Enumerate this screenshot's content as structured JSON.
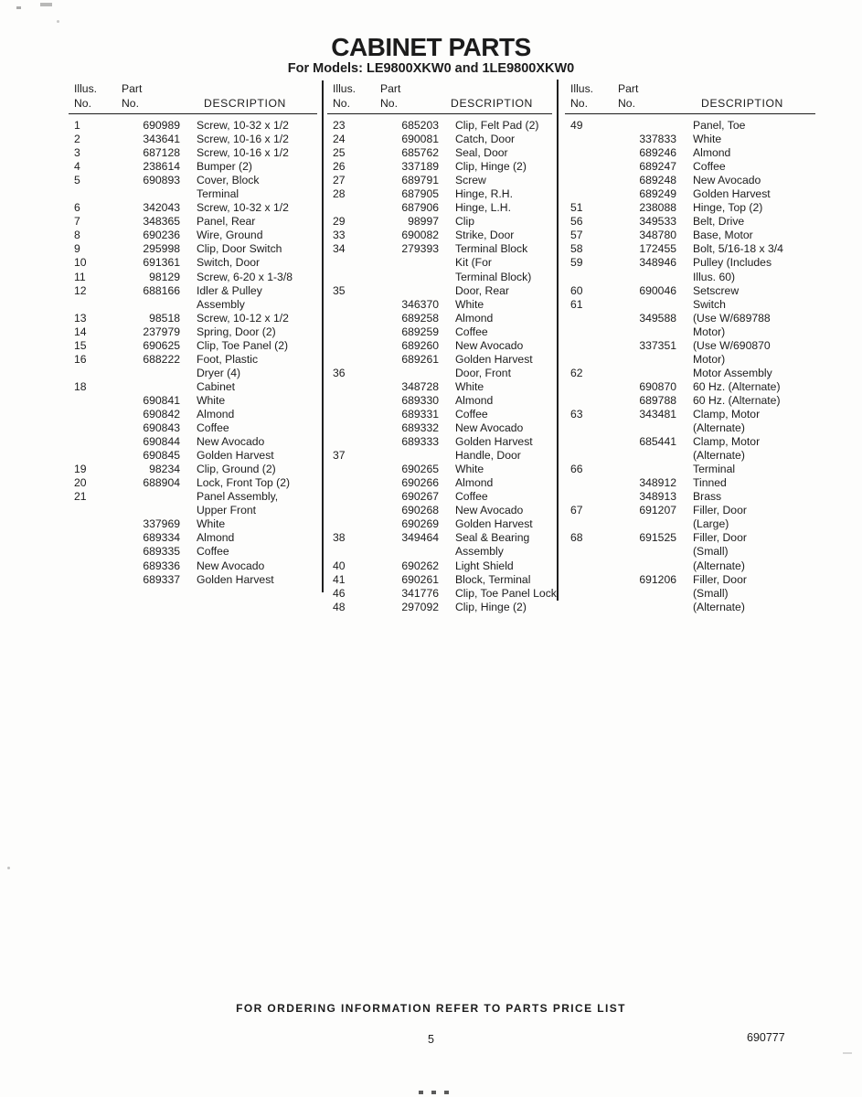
{
  "page": {
    "title": "CABINET PARTS",
    "subtitle": "For Models: LE9800XKW0 and 1LE9800XKW0",
    "footer_note": "FOR ORDERING INFORMATION REFER TO PARTS PRICE LIST",
    "page_number": "5",
    "doc_number": "690777"
  },
  "table": {
    "header": {
      "illus_label": "Illus.",
      "part_label": "Part",
      "no_label": "No.",
      "no2_label": "No.",
      "description_label": "DESCRIPTION"
    },
    "columns": [
      {
        "rows": [
          {
            "illus": "1",
            "part": "690989",
            "desc": "Screw, 10-32 x 1/2"
          },
          {
            "illus": "2",
            "part": "343641",
            "desc": "Screw, 10-16 x 1/2"
          },
          {
            "illus": "3",
            "part": "687128",
            "desc": "Screw, 10-16 x 1/2"
          },
          {
            "illus": "4",
            "part": "238614",
            "desc": "Bumper (2)"
          },
          {
            "illus": "5",
            "part": "690893",
            "desc": "Cover, Block"
          },
          {
            "illus": "",
            "part": "",
            "desc": "Terminal"
          },
          {
            "illus": "6",
            "part": "342043",
            "desc": "Screw, 10-32 x 1/2"
          },
          {
            "illus": "7",
            "part": "348365",
            "desc": "Panel, Rear"
          },
          {
            "illus": "8",
            "part": "690236",
            "desc": "Wire, Ground"
          },
          {
            "illus": "9",
            "part": "295998",
            "desc": "Clip, Door Switch"
          },
          {
            "illus": "10",
            "part": "691361",
            "desc": "Switch, Door"
          },
          {
            "illus": "11",
            "part": "98129",
            "desc": "Screw, 6-20 x 1-3/8"
          },
          {
            "illus": "12",
            "part": "688166",
            "desc": "Idler & Pulley"
          },
          {
            "illus": "",
            "part": "",
            "desc": "Assembly"
          },
          {
            "illus": "13",
            "part": "98518",
            "desc": "Screw, 10-12 x 1/2"
          },
          {
            "illus": "14",
            "part": "237979",
            "desc": "Spring, Door (2)"
          },
          {
            "illus": "15",
            "part": "690625",
            "desc": "Clip, Toe Panel (2)"
          },
          {
            "illus": "16",
            "part": "688222",
            "desc": "Foot, Plastic"
          },
          {
            "illus": "",
            "part": "",
            "desc": "Dryer (4)"
          },
          {
            "illus": "18",
            "part": "",
            "desc": "Cabinet"
          },
          {
            "illus": "",
            "part": "690841",
            "desc": "White"
          },
          {
            "illus": "",
            "part": "690842",
            "desc": "Almond"
          },
          {
            "illus": "",
            "part": "690843",
            "desc": "Coffee"
          },
          {
            "illus": "",
            "part": "690844",
            "desc": "New Avocado"
          },
          {
            "illus": "",
            "part": "690845",
            "desc": "Golden Harvest"
          },
          {
            "illus": "19",
            "part": "98234",
            "desc": "Clip, Ground (2)"
          },
          {
            "illus": "20",
            "part": "688904",
            "desc": "Lock, Front Top (2)"
          },
          {
            "illus": "21",
            "part": "",
            "desc": "Panel Assembly,"
          },
          {
            "illus": "",
            "part": "",
            "desc": "Upper Front"
          },
          {
            "illus": "",
            "part": "337969",
            "desc": "White"
          },
          {
            "illus": "",
            "part": "689334",
            "desc": "Almond"
          },
          {
            "illus": "",
            "part": "689335",
            "desc": "Coffee"
          },
          {
            "illus": "",
            "part": "689336",
            "desc": "New Avocado"
          },
          {
            "illus": "",
            "part": "689337",
            "desc": "Golden Harvest"
          }
        ]
      },
      {
        "rows": [
          {
            "illus": "23",
            "part": "685203",
            "desc": "Clip, Felt Pad (2)"
          },
          {
            "illus": "24",
            "part": "690081",
            "desc": "Catch, Door"
          },
          {
            "illus": "25",
            "part": "685762",
            "desc": "Seal, Door"
          },
          {
            "illus": "26",
            "part": "337189",
            "desc": "Clip, Hinge (2)"
          },
          {
            "illus": "27",
            "part": "689791",
            "desc": "Screw"
          },
          {
            "illus": "28",
            "part": "687905",
            "desc": "Hinge, R.H."
          },
          {
            "illus": "",
            "part": "687906",
            "desc": "Hinge, L.H."
          },
          {
            "illus": "29",
            "part": "98997",
            "desc": "Clip"
          },
          {
            "illus": "33",
            "part": "690082",
            "desc": "Strike, Door"
          },
          {
            "illus": "34",
            "part": "279393",
            "desc": "Terminal Block"
          },
          {
            "illus": "",
            "part": "",
            "desc": "Kit (For"
          },
          {
            "illus": "",
            "part": "",
            "desc": "Terminal Block)"
          },
          {
            "illus": "35",
            "part": "",
            "desc": "Door, Rear"
          },
          {
            "illus": "",
            "part": "346370",
            "desc": "White"
          },
          {
            "illus": "",
            "part": "689258",
            "desc": "Almond"
          },
          {
            "illus": "",
            "part": "689259",
            "desc": "Coffee"
          },
          {
            "illus": "",
            "part": "689260",
            "desc": "New Avocado"
          },
          {
            "illus": "",
            "part": "689261",
            "desc": "Golden Harvest"
          },
          {
            "illus": "36",
            "part": "",
            "desc": "Door, Front"
          },
          {
            "illus": "",
            "part": "348728",
            "desc": "White"
          },
          {
            "illus": "",
            "part": "689330",
            "desc": "Almond"
          },
          {
            "illus": "",
            "part": "689331",
            "desc": "Coffee"
          },
          {
            "illus": "",
            "part": "689332",
            "desc": "New Avocado"
          },
          {
            "illus": "",
            "part": "689333",
            "desc": "Golden Harvest"
          },
          {
            "illus": "37",
            "part": "",
            "desc": "Handle, Door"
          },
          {
            "illus": "",
            "part": "690265",
            "desc": "White"
          },
          {
            "illus": "",
            "part": "690266",
            "desc": "Almond"
          },
          {
            "illus": "",
            "part": "690267",
            "desc": "Coffee"
          },
          {
            "illus": "",
            "part": "690268",
            "desc": "New Avocado"
          },
          {
            "illus": "",
            "part": "690269",
            "desc": "Golden Harvest"
          },
          {
            "illus": "38",
            "part": "349464",
            "desc": "Seal & Bearing"
          },
          {
            "illus": "",
            "part": "",
            "desc": "Assembly"
          },
          {
            "illus": "40",
            "part": "690262",
            "desc": "Light Shield"
          },
          {
            "illus": "41",
            "part": "690261",
            "desc": "Block, Terminal"
          },
          {
            "illus": "46",
            "part": "341776",
            "desc": "Clip, Toe Panel Lock"
          },
          {
            "illus": "48",
            "part": "297092",
            "desc": "Clip, Hinge (2)"
          }
        ]
      },
      {
        "rows": [
          {
            "illus": "49",
            "part": "",
            "desc": "Panel, Toe"
          },
          {
            "illus": "",
            "part": "337833",
            "desc": "White"
          },
          {
            "illus": "",
            "part": "689246",
            "desc": "Almond"
          },
          {
            "illus": "",
            "part": "689247",
            "desc": "Coffee"
          },
          {
            "illus": "",
            "part": "689248",
            "desc": "New Avocado"
          },
          {
            "illus": "",
            "part": "689249",
            "desc": "Golden Harvest"
          },
          {
            "illus": "51",
            "part": "238088",
            "desc": "Hinge, Top (2)"
          },
          {
            "illus": "56",
            "part": "349533",
            "desc": "Belt, Drive"
          },
          {
            "illus": "57",
            "part": "348780",
            "desc": "Base, Motor"
          },
          {
            "illus": "58",
            "part": "172455",
            "desc": "Bolt, 5/16-18 x 3/4"
          },
          {
            "illus": "59",
            "part": "348946",
            "desc": "Pulley (Includes"
          },
          {
            "illus": "",
            "part": "",
            "desc": "Illus. 60)"
          },
          {
            "illus": "60",
            "part": "690046",
            "desc": "Setscrew"
          },
          {
            "illus": "61",
            "part": "",
            "desc": "Switch"
          },
          {
            "illus": "",
            "part": "349588",
            "desc": "(Use W/689788"
          },
          {
            "illus": "",
            "part": "",
            "desc": "Motor)"
          },
          {
            "illus": "",
            "part": "337351",
            "desc": "(Use W/690870"
          },
          {
            "illus": "",
            "part": "",
            "desc": "Motor)"
          },
          {
            "illus": "62",
            "part": "",
            "desc": "Motor Assembly"
          },
          {
            "illus": "",
            "part": "690870",
            "desc": "60 Hz. (Alternate)"
          },
          {
            "illus": "",
            "part": "689788",
            "desc": "60 Hz. (Alternate)"
          },
          {
            "illus": "63",
            "part": "343481",
            "desc": "Clamp, Motor"
          },
          {
            "illus": "",
            "part": "",
            "desc": "(Alternate)"
          },
          {
            "illus": "",
            "part": "685441",
            "desc": "Clamp, Motor"
          },
          {
            "illus": "",
            "part": "",
            "desc": "(Alternate)"
          },
          {
            "illus": "66",
            "part": "",
            "desc": "Terminal"
          },
          {
            "illus": "",
            "part": "348912",
            "desc": "Tinned"
          },
          {
            "illus": "",
            "part": "348913",
            "desc": "Brass"
          },
          {
            "illus": "67",
            "part": "691207",
            "desc": "Filler, Door"
          },
          {
            "illus": "",
            "part": "",
            "desc": "(Large)"
          },
          {
            "illus": "68",
            "part": "691525",
            "desc": "Filler, Door"
          },
          {
            "illus": "",
            "part": "",
            "desc": "(Small)"
          },
          {
            "illus": "",
            "part": "",
            "desc": "(Alternate)"
          },
          {
            "illus": "",
            "part": "691206",
            "desc": "Filler, Door"
          },
          {
            "illus": "",
            "part": "",
            "desc": "(Small)"
          },
          {
            "illus": "",
            "part": "",
            "desc": "(Alternate)"
          }
        ]
      }
    ]
  }
}
